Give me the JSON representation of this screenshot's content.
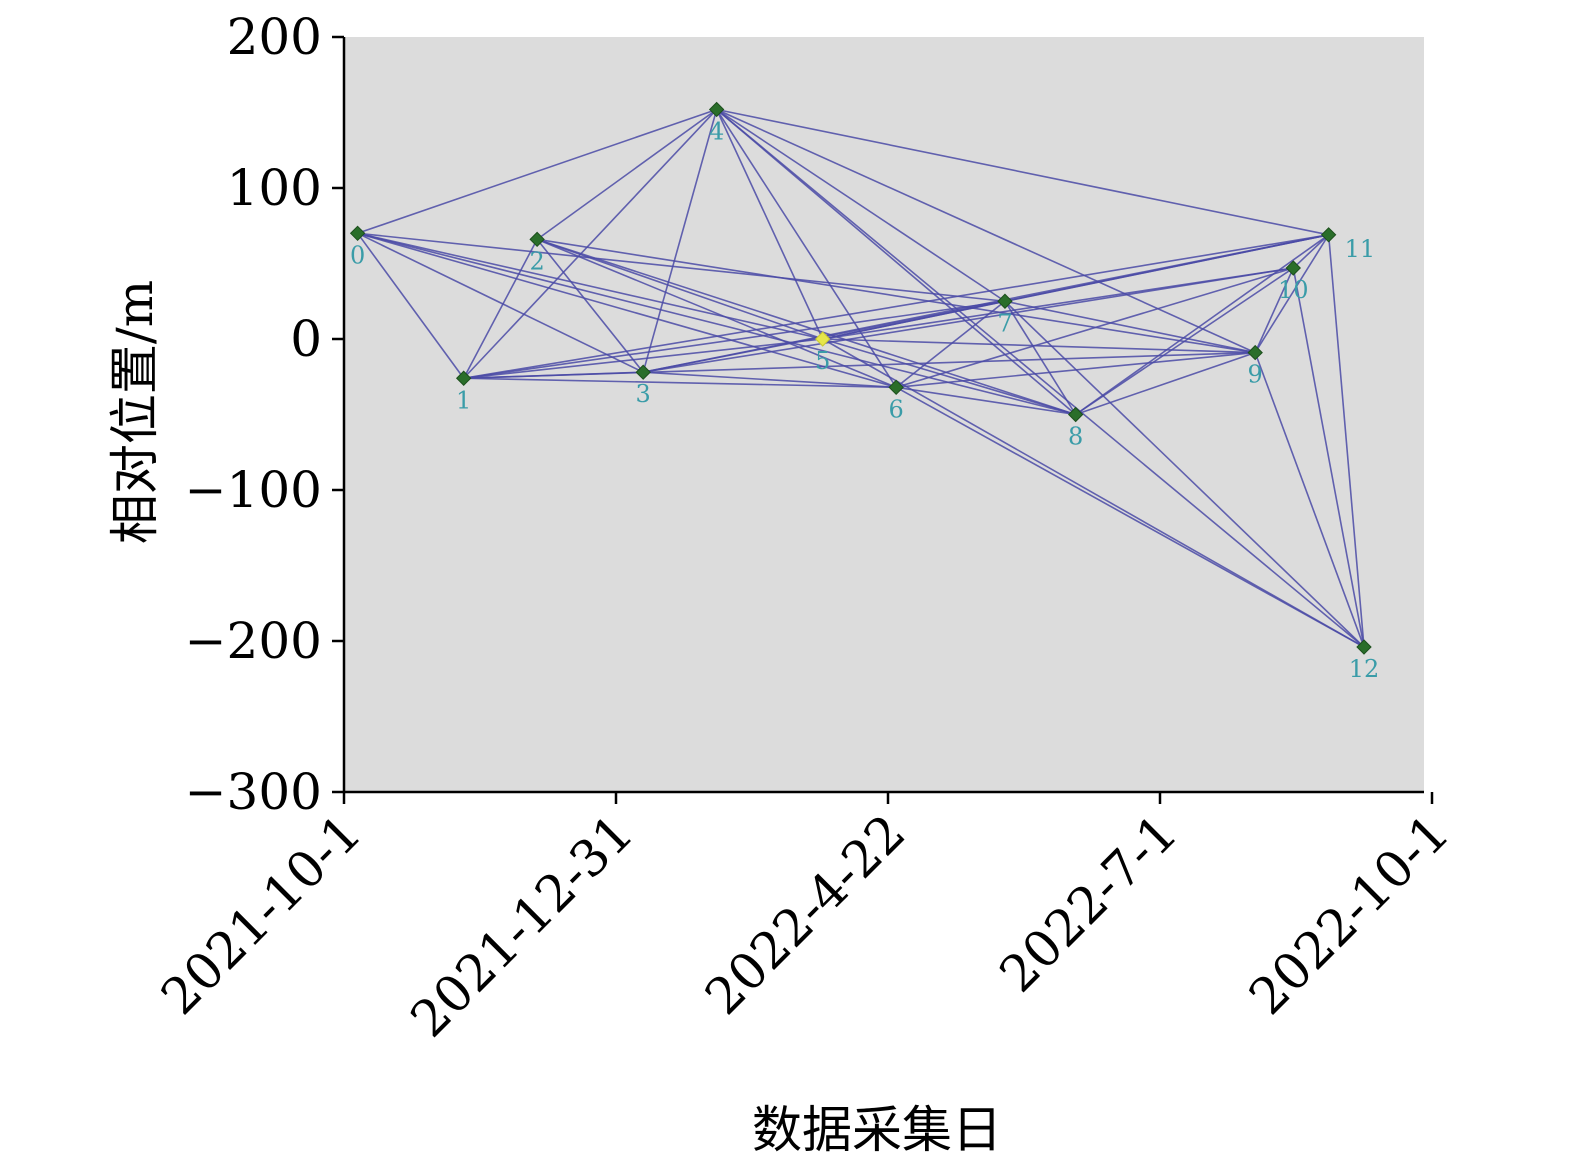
{
  "chart_data": {
    "type": "scatter",
    "title": "",
    "xlabel": "数据采集日",
    "ylabel": "相对位置/m",
    "ylim": [
      -300,
      200
    ],
    "yticks": [
      200,
      100,
      0,
      -100,
      -200,
      -300
    ],
    "ytick_labels": [
      "200",
      "100",
      "0",
      "−100",
      "−200",
      "−300"
    ],
    "xticks": [
      "2021-10-1",
      "2021-12-31",
      "2022-4-22",
      "2022-7-1",
      "2022-10-1"
    ],
    "grid": false,
    "legend": "none",
    "points": [
      {
        "label": "0",
        "x_index": 0.05,
        "y": 70
      },
      {
        "label": "1",
        "x_index": 0.44,
        "y": -26
      },
      {
        "label": "2",
        "x_index": 0.71,
        "y": 66
      },
      {
        "label": "3",
        "x_index": 1.1,
        "y": -22
      },
      {
        "label": "4",
        "x_index": 1.37,
        "y": 152
      },
      {
        "label": "5",
        "x_index": 1.76,
        "y": 0,
        "reference": true
      },
      {
        "label": "6",
        "x_index": 2.03,
        "y": -32
      },
      {
        "label": "7",
        "x_index": 2.43,
        "y": 25
      },
      {
        "label": "8",
        "x_index": 2.69,
        "y": -50
      },
      {
        "label": "9",
        "x_index": 3.35,
        "y": -9
      },
      {
        "label": "10",
        "x_index": 3.49,
        "y": 47
      },
      {
        "label": "11",
        "x_index": 3.62,
        "y": 69
      },
      {
        "label": "12",
        "x_index": 3.75,
        "y": -204
      }
    ],
    "edges": [
      [
        0,
        1
      ],
      [
        0,
        3
      ],
      [
        0,
        4
      ],
      [
        0,
        5
      ],
      [
        0,
        6
      ],
      [
        0,
        7
      ],
      [
        0,
        8
      ],
      [
        1,
        2
      ],
      [
        1,
        4
      ],
      [
        1,
        3
      ],
      [
        1,
        5
      ],
      [
        1,
        6
      ],
      [
        1,
        7
      ],
      [
        1,
        9
      ],
      [
        1,
        11
      ],
      [
        2,
        3
      ],
      [
        2,
        4
      ],
      [
        2,
        5
      ],
      [
        2,
        6
      ],
      [
        2,
        8
      ],
      [
        2,
        9
      ],
      [
        3,
        4
      ],
      [
        3,
        6
      ],
      [
        3,
        10
      ],
      [
        3,
        11
      ],
      [
        3,
        7
      ],
      [
        4,
        5
      ],
      [
        4,
        6
      ],
      [
        4,
        7
      ],
      [
        4,
        8
      ],
      [
        4,
        9
      ],
      [
        4,
        12
      ],
      [
        4,
        11
      ],
      [
        5,
        7
      ],
      [
        5,
        8
      ],
      [
        5,
        9
      ],
      [
        5,
        10
      ],
      [
        5,
        12
      ],
      [
        5,
        11
      ],
      [
        6,
        7
      ],
      [
        6,
        9
      ],
      [
        6,
        10
      ],
      [
        6,
        12
      ],
      [
        6,
        8
      ],
      [
        7,
        8
      ],
      [
        7,
        9
      ],
      [
        7,
        12
      ],
      [
        7,
        11
      ],
      [
        8,
        10
      ],
      [
        8,
        11
      ],
      [
        8,
        9
      ],
      [
        9,
        10
      ],
      [
        9,
        12
      ],
      [
        9,
        11
      ],
      [
        10,
        11
      ],
      [
        10,
        12
      ],
      [
        11,
        12
      ]
    ],
    "colors": {
      "plot_bg": "#dcdcdc",
      "edge": "#4a4aa6",
      "marker": "#2a6e2a",
      "reference_marker": "#e6e64a",
      "point_label": "#3a9ca8",
      "axis": "#000000"
    }
  }
}
